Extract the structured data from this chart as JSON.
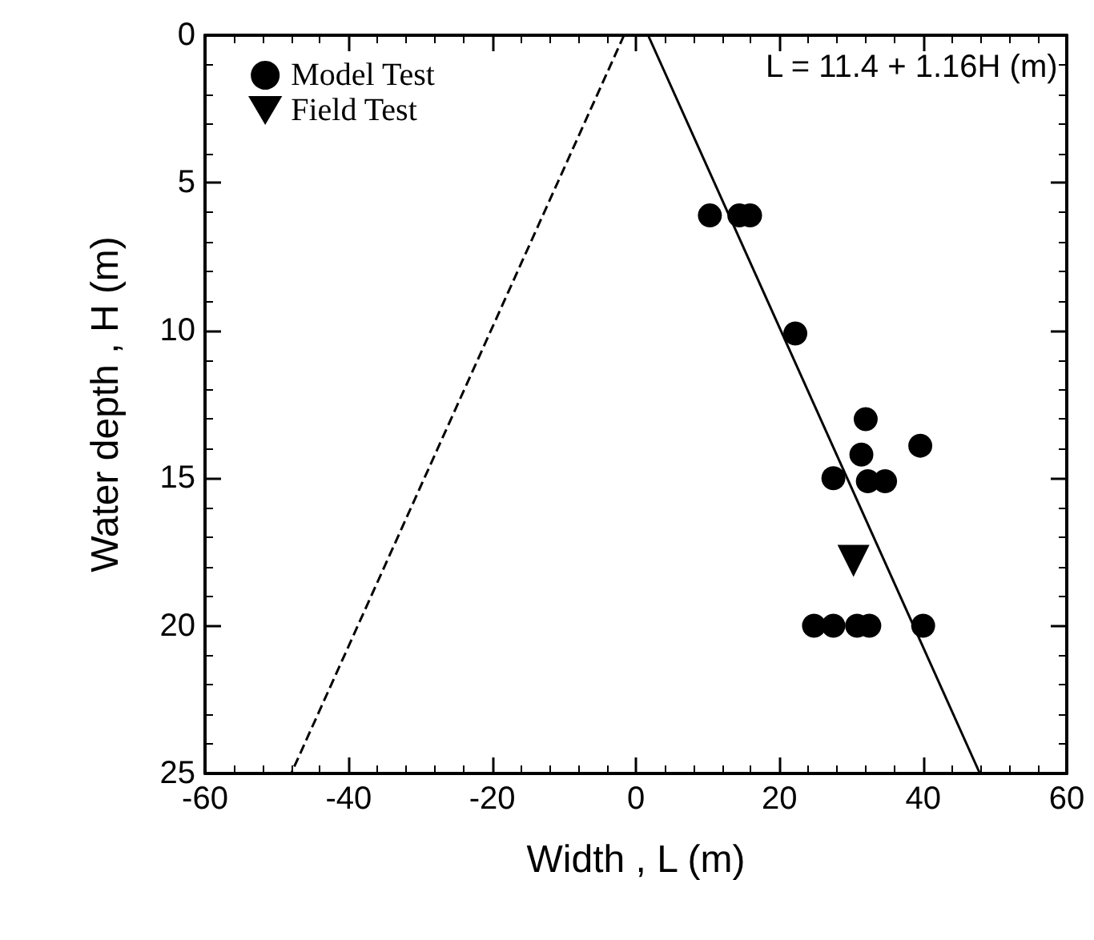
{
  "chart_data": {
    "type": "scatter",
    "xlabel": "Width , L (m)",
    "ylabel": "Water depth , H (m)",
    "xlim": [
      -60,
      60
    ],
    "xticks": [
      -60,
      -40,
      -20,
      0,
      20,
      40,
      60
    ],
    "ylim": [
      25,
      0
    ],
    "yticks": [
      0,
      5,
      10,
      15,
      20,
      25
    ],
    "grid": false,
    "legend": "top left",
    "annotations": [
      "L = 11.4 + 1.16H (m)"
    ],
    "series": [
      {
        "name": "Model Test",
        "marker": "circle",
        "color": "#000000",
        "x": [
          10.3,
          14.4,
          15.9,
          22.2,
          32,
          39.6,
          31.4,
          27.5,
          32.3,
          34.7,
          24.8,
          27.5,
          30.8,
          32.5,
          40
        ],
        "values": [
          6.1,
          6.1,
          6.1,
          10.1,
          13,
          13.9,
          14.2,
          15,
          15.1,
          15.1,
          20,
          20,
          20,
          20,
          20
        ]
      },
      {
        "name": "Field Test",
        "marker": "triangle",
        "color": "#000000",
        "x": [
          30.3
        ],
        "values": [
          17.8
        ]
      },
      {
        "type": "line",
        "marker": "none",
        "line_style": "solid",
        "color": "#000000",
        "x": [
          1.7,
          47.9
        ],
        "values": [
          0,
          25
        ]
      },
      {
        "type": "line",
        "marker": "none",
        "line_style": "dashed",
        "color": "#000000",
        "x": [
          -1.65,
          -48
        ],
        "values": [
          0,
          25
        ]
      }
    ]
  }
}
